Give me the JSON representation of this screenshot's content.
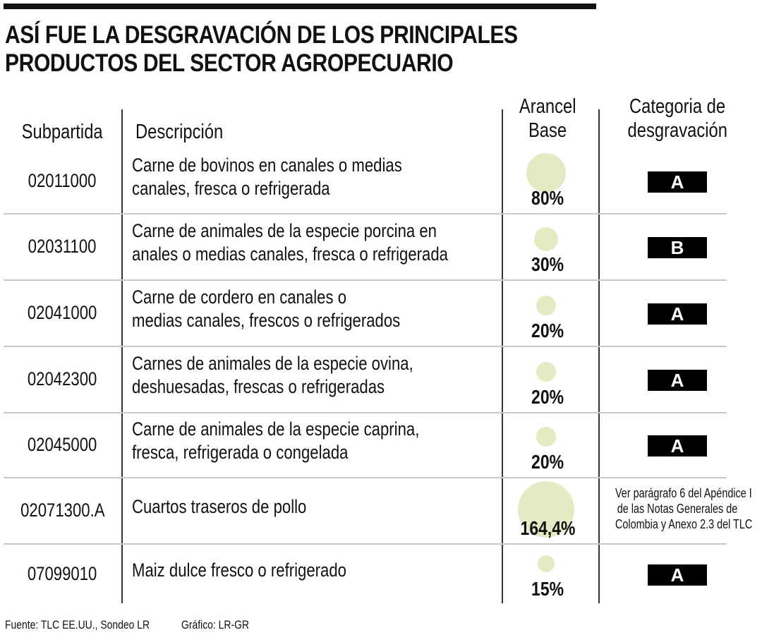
{
  "title": [
    "ASÍ FUE LA DESGRAVACIÓN DE LOS PRINCIPALES",
    "PRODUCTOS DEL SECTOR AGROPECUARIO"
  ],
  "headers": {
    "subpartida": "Subpartida",
    "descripcion": "Descripción",
    "arancel": [
      "Arancel",
      "Base"
    ],
    "categoria": [
      "Categoria de",
      "desgravación"
    ]
  },
  "colors": {
    "bubble": "#e6eac2",
    "category_box": "#000000",
    "text": "#111111"
  },
  "chart_data": {
    "type": "table",
    "bubble_encoding": "Arancel Base (bubble area)",
    "columns": [
      "Subpartida",
      "Descripción",
      "Arancel Base",
      "Categoria de desgravación"
    ],
    "rows": [
      {
        "code": "02011000",
        "desc": [
          "Carne de bovinos en canales o medias",
          "canales, fresca o refrigerada"
        ],
        "arancel": 80,
        "label": "80%",
        "cat": "A"
      },
      {
        "code": "02031100",
        "desc": [
          "Carne de animales de la especie porcina en",
          "anales o medias canales, fresca o refrigerada"
        ],
        "arancel": 30,
        "label": "30%",
        "cat": "B"
      },
      {
        "code": "02041000",
        "desc": [
          "Carne de cordero en canales o",
          "medias canales, frescos o refrigerados"
        ],
        "arancel": 20,
        "label": "20%",
        "cat": "A"
      },
      {
        "code": "02042300",
        "desc": [
          "Carnes de animales de la especie ovina,",
          "deshuesadas, frescas o refrigeradas"
        ],
        "arancel": 20,
        "label": "20%",
        "cat": "A"
      },
      {
        "code": "02045000",
        "desc": [
          "Carne de animales de la especie caprina,",
          "fresca, refrigerada o congelada"
        ],
        "arancel": 20,
        "label": "20%",
        "cat": "A"
      },
      {
        "code": "02071300.A",
        "desc": [
          "Cuartos traseros de pollo"
        ],
        "arancel": 164.4,
        "label": "164,4%",
        "cat": "",
        "note": [
          "Ver parágrafo 6 del Apéndice I",
          "de las Notas Generales de",
          "Colombia y Anexo 2.3 del TLC"
        ]
      },
      {
        "code": "07099010",
        "desc": [
          "Maiz dulce  fresco o refrigerado"
        ],
        "arancel": 15,
        "label": "15%",
        "cat": "A"
      }
    ]
  },
  "footer": {
    "source": "Fuente: TLC EE.UU., Sondeo LR",
    "credit": "Gráfico: LR-GR"
  }
}
